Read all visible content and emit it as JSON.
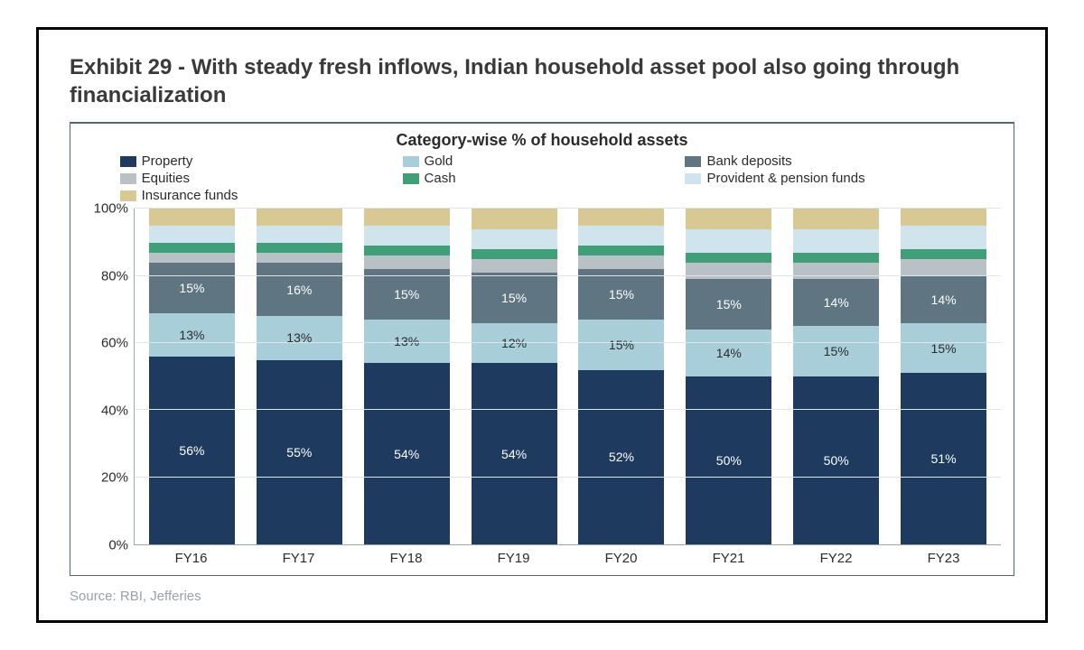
{
  "exhibit_title": "Exhibit 29 - With steady fresh inflows, Indian household asset pool also going through financialization",
  "chart_title": "Category-wise % of household assets",
  "source": "Source: RBI, Jefferies",
  "chart": {
    "type": "stacked-bar-100",
    "ylim": [
      0,
      100
    ],
    "ytick_step": 20,
    "bar_width_pct": 10,
    "background_color": "#ffffff",
    "grid_color": "#dfe6ea",
    "axis_color": "#99aab0",
    "label_fontsize": 15,
    "value_fontsize": 14,
    "categories": [
      "FY16",
      "FY17",
      "FY18",
      "FY19",
      "FY20",
      "FY21",
      "FY22",
      "FY23"
    ],
    "series": [
      {
        "key": "property",
        "label": "Property",
        "color": "#1e3a5f",
        "text_light": false
      },
      {
        "key": "gold",
        "label": "Gold",
        "color": "#a8ced9",
        "text_light": true
      },
      {
        "key": "bank_deposits",
        "label": "Bank deposits",
        "color": "#5f7582",
        "text_light": false
      },
      {
        "key": "equities",
        "label": "Equities",
        "color": "#b9c1c6",
        "text_light": true
      },
      {
        "key": "cash",
        "label": "Cash",
        "color": "#3e9f79",
        "text_light": false
      },
      {
        "key": "provident",
        "label": "Provident & pension funds",
        "color": "#cfe4ec",
        "text_light": true
      },
      {
        "key": "insurance",
        "label": "Insurance funds",
        "color": "#d8c993",
        "text_light": true
      }
    ],
    "data": {
      "property": [
        56,
        55,
        54,
        54,
        52,
        50,
        50,
        51
      ],
      "gold": [
        13,
        13,
        13,
        12,
        15,
        14,
        15,
        15
      ],
      "bank_deposits": [
        15,
        16,
        15,
        15,
        15,
        15,
        14,
        14
      ],
      "equities": [
        3,
        3,
        4,
        4,
        4,
        5,
        5,
        5
      ],
      "cash": [
        3,
        3,
        3,
        3,
        3,
        3,
        3,
        3
      ],
      "provident": [
        5,
        5,
        6,
        6,
        6,
        7,
        7,
        7
      ],
      "insurance": [
        5,
        5,
        5,
        6,
        5,
        6,
        6,
        5
      ]
    },
    "show_labels_for": [
      "property",
      "gold",
      "bank_deposits"
    ]
  }
}
